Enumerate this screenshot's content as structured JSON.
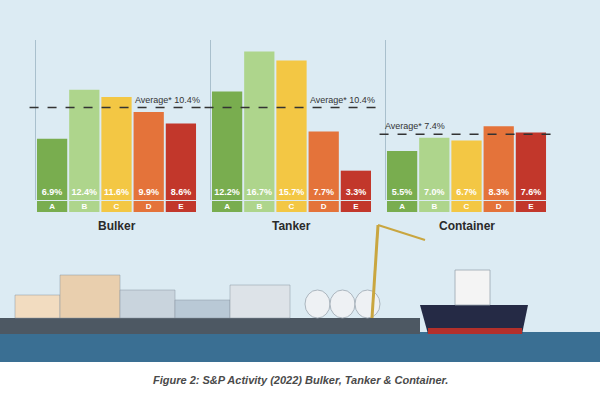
{
  "caption": "Figure 2: S&P Activity (2022) Bulker, Tanker & Container.",
  "chart_data": [
    {
      "type": "bar",
      "title": "Bulker",
      "categories": [
        "A",
        "B",
        "C",
        "D",
        "E"
      ],
      "values": [
        6.9,
        12.4,
        11.6,
        9.9,
        8.6
      ],
      "value_labels": [
        "6.9%",
        "12.4%",
        "11.6%",
        "9.9%",
        "8.6%"
      ],
      "colors": [
        "#79ad4f",
        "#aed58c",
        "#f3c744",
        "#e4733a",
        "#c2372b"
      ],
      "ylim": [
        0,
        18
      ],
      "data_labels": true,
      "tick_labels": "x",
      "average": {
        "value": 10.4,
        "label": "Average* 10.4%"
      }
    },
    {
      "type": "bar",
      "title": "Tanker",
      "categories": [
        "A",
        "B",
        "C",
        "D",
        "E"
      ],
      "values": [
        12.2,
        16.7,
        15.7,
        7.7,
        3.3
      ],
      "value_labels": [
        "12.2%",
        "16.7%",
        "15.7%",
        "7.7%",
        "3.3%"
      ],
      "colors": [
        "#79ad4f",
        "#aed58c",
        "#f3c744",
        "#e4733a",
        "#c2372b"
      ],
      "ylim": [
        0,
        18
      ],
      "data_labels": true,
      "tick_labels": "x",
      "average": {
        "value": 10.4,
        "label": "Average* 10.4%"
      }
    },
    {
      "type": "bar",
      "title": "Container",
      "categories": [
        "A",
        "B",
        "C",
        "D",
        "E"
      ],
      "values": [
        5.5,
        7.0,
        6.7,
        8.3,
        7.6
      ],
      "value_labels": [
        "5.5%",
        "7.0%",
        "6.7%",
        "8.3%",
        "7.6%"
      ],
      "colors": [
        "#79ad4f",
        "#aed58c",
        "#f3c744",
        "#e4733a",
        "#c2372b"
      ],
      "ylim": [
        0,
        18
      ],
      "data_labels": true,
      "tick_labels": "x",
      "average": {
        "value": 7.4,
        "label": "Average* 7.4%"
      }
    }
  ]
}
